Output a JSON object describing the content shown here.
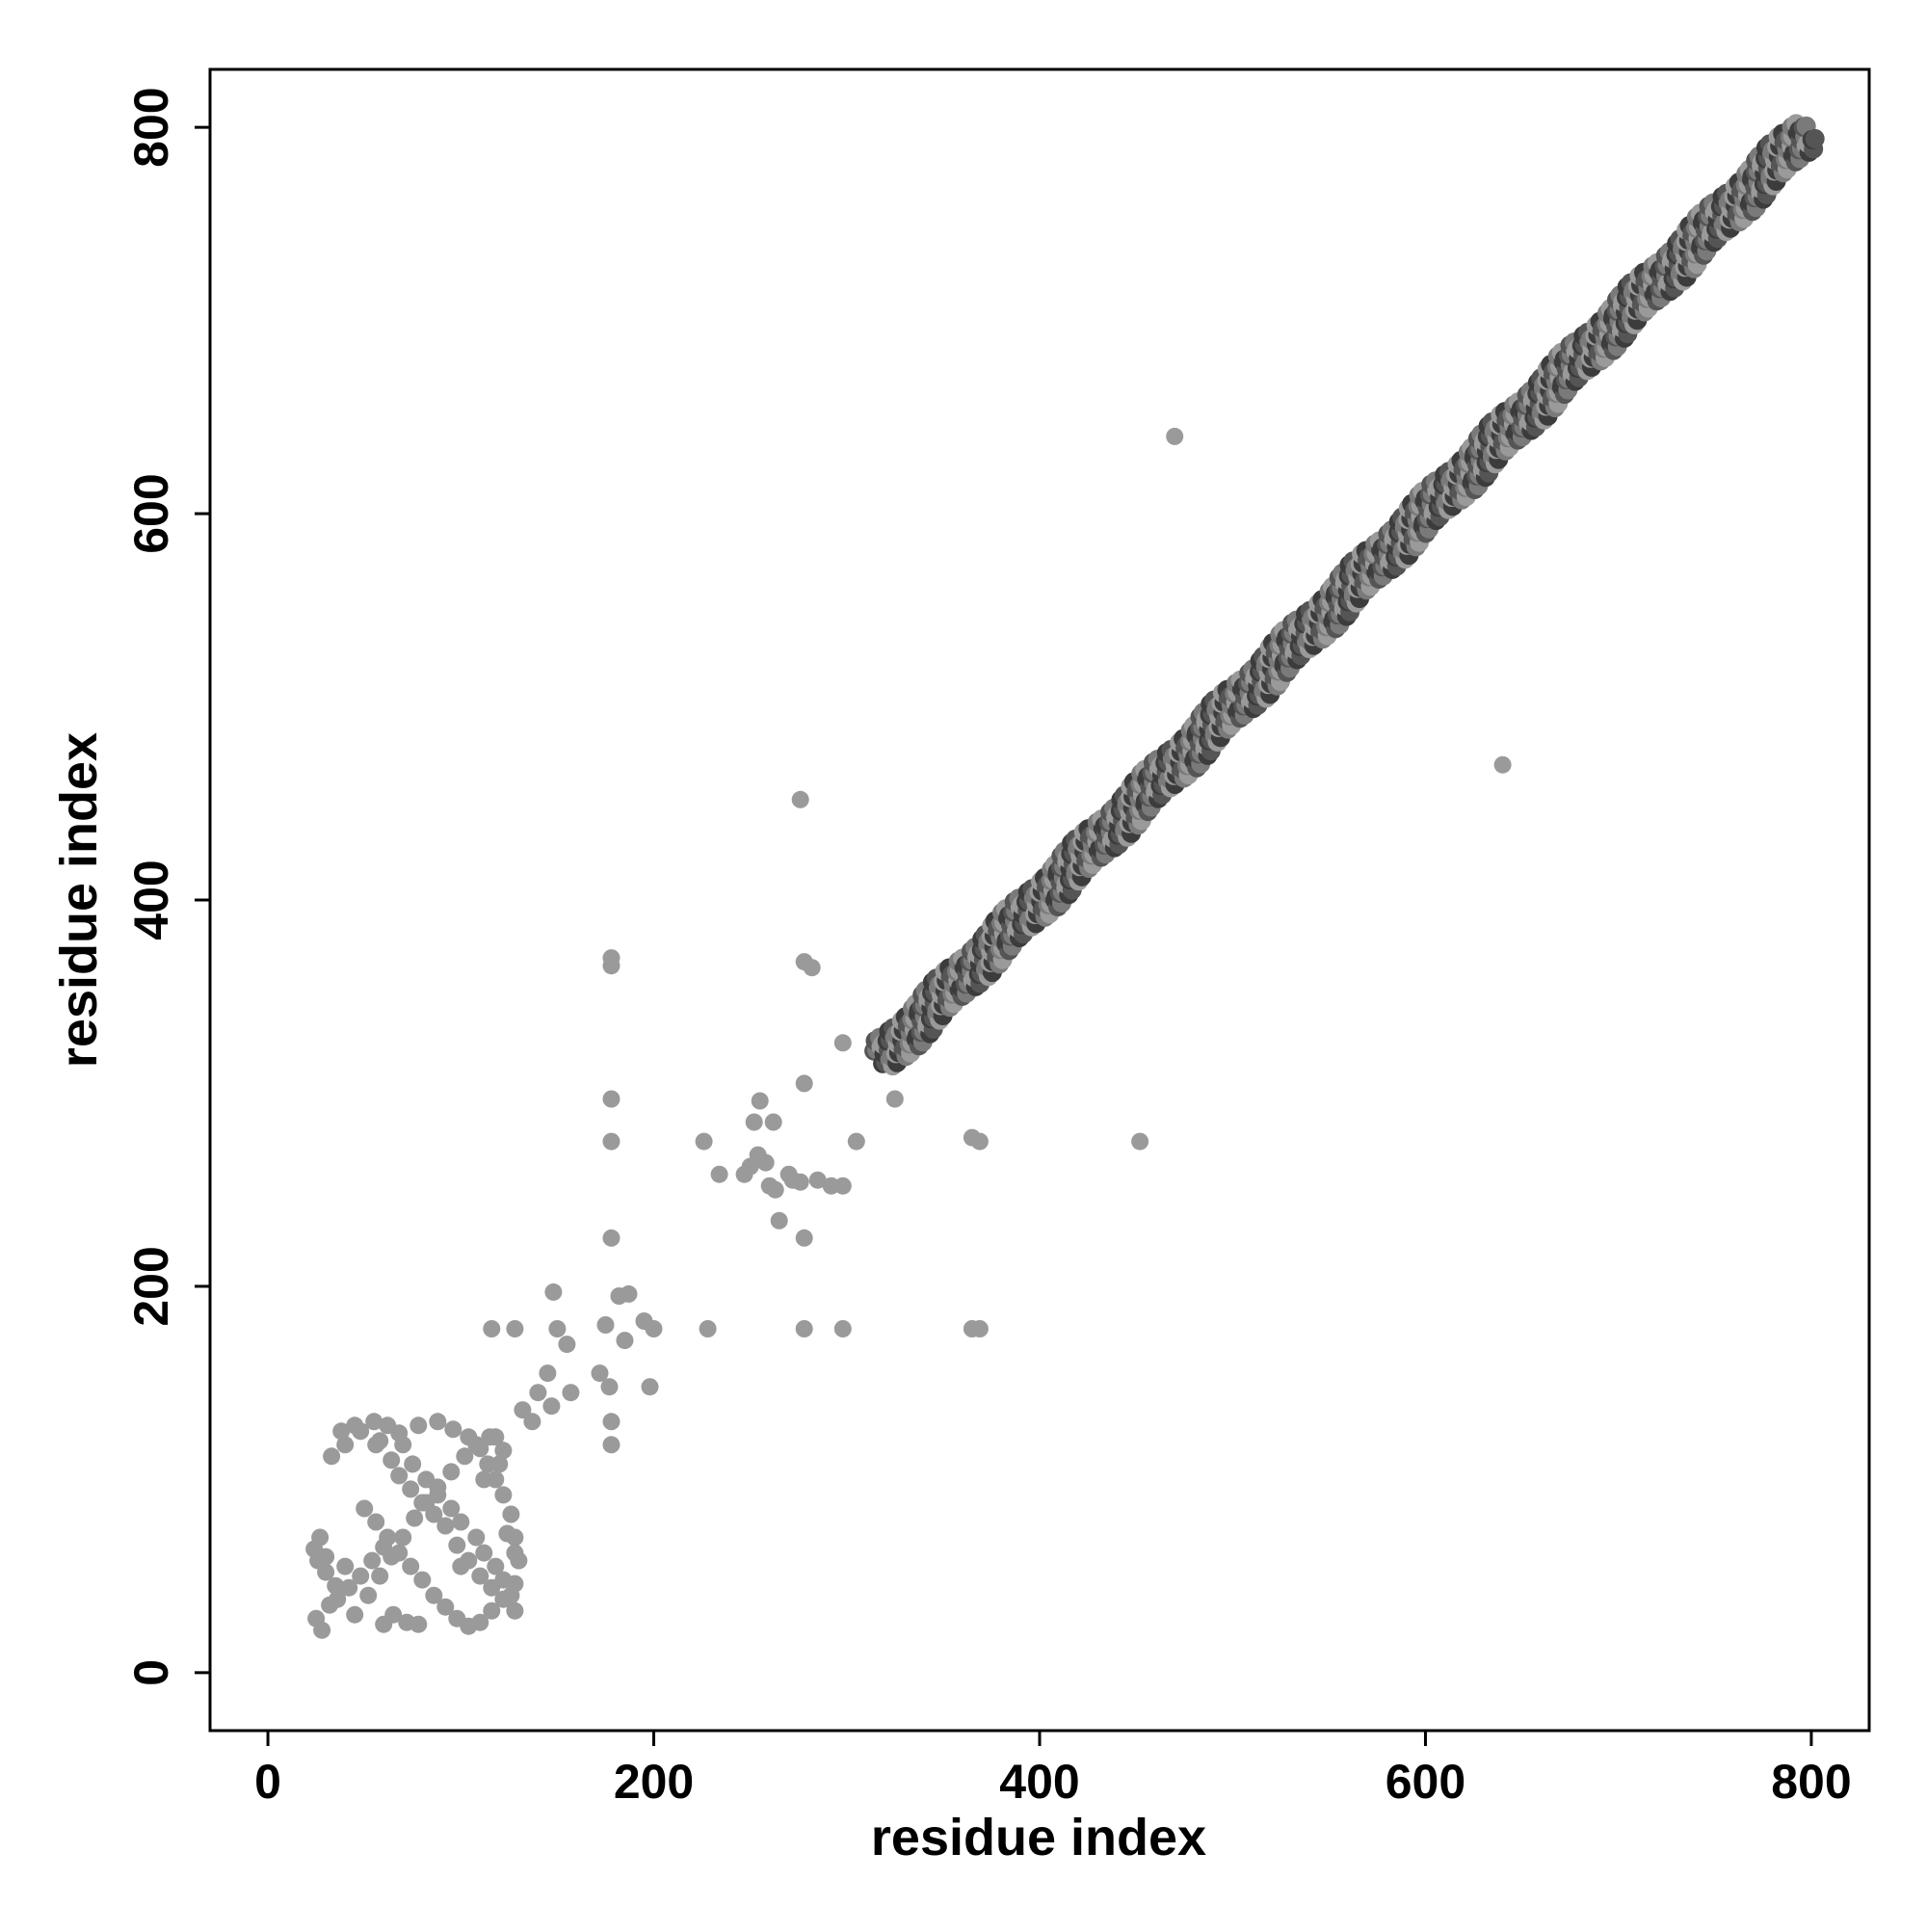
{
  "chart_data": {
    "type": "scatter",
    "title": "",
    "xlabel": "residue index",
    "ylabel": "residue index",
    "xlim": [
      -30,
      830
    ],
    "ylim": [
      -30,
      830
    ],
    "xticks": [
      0,
      200,
      400,
      600,
      800
    ],
    "yticks": [
      0,
      200,
      400,
      600,
      800
    ],
    "xtick_labels": [
      "0",
      "200",
      "400",
      "600",
      "800"
    ],
    "ytick_labels": [
      "0",
      "200",
      "400",
      "600",
      "800"
    ],
    "grid": false,
    "legend": "none",
    "colors": {
      "light": "#9a9a9a",
      "mid": "#7a7a7a",
      "dark": "#555555",
      "darkest": "#3c3c3c",
      "axis": "#000000"
    },
    "series": [
      {
        "color_group": "light",
        "points": [
          [
            25,
            28
          ],
          [
            28,
            22
          ],
          [
            32,
            35
          ],
          [
            35,
            45
          ],
          [
            40,
            55
          ],
          [
            30,
            60
          ],
          [
            27,
            70
          ],
          [
            33,
            112
          ],
          [
            40,
            118
          ],
          [
            48,
            125
          ],
          [
            55,
            130
          ],
          [
            62,
            128
          ],
          [
            70,
            118
          ],
          [
            75,
            108
          ],
          [
            82,
            100
          ],
          [
            88,
            92
          ],
          [
            95,
            85
          ],
          [
            100,
            78
          ],
          [
            108,
            70
          ],
          [
            112,
            62
          ],
          [
            118,
            55
          ],
          [
            122,
            48
          ],
          [
            126,
            40
          ],
          [
            128,
            32
          ],
          [
            45,
            30
          ],
          [
            52,
            40
          ],
          [
            58,
            50
          ],
          [
            64,
            60
          ],
          [
            70,
            70
          ],
          [
            76,
            80
          ],
          [
            82,
            88
          ],
          [
            88,
            96
          ],
          [
            95,
            104
          ],
          [
            102,
            112
          ],
          [
            108,
            118
          ],
          [
            115,
            122
          ],
          [
            50,
            85
          ],
          [
            56,
            78
          ],
          [
            62,
            70
          ],
          [
            68,
            62
          ],
          [
            74,
            55
          ],
          [
            80,
            48
          ],
          [
            86,
            40
          ],
          [
            92,
            34
          ],
          [
            98,
            28
          ],
          [
            104,
            24
          ],
          [
            110,
            26
          ],
          [
            116,
            32
          ],
          [
            60,
            25
          ],
          [
            65,
            30
          ],
          [
            72,
            26
          ],
          [
            78,
            25
          ],
          [
            38,
            125
          ],
          [
            45,
            128
          ],
          [
            56,
            118
          ],
          [
            64,
            110
          ],
          [
            68,
            102
          ],
          [
            74,
            95
          ],
          [
            80,
            88
          ],
          [
            86,
            82
          ],
          [
            92,
            76
          ],
          [
            98,
            66
          ],
          [
            104,
            58
          ],
          [
            110,
            50
          ],
          [
            116,
            44
          ],
          [
            122,
            38
          ],
          [
            128,
            46
          ],
          [
            130,
            58
          ],
          [
            128,
            70
          ],
          [
            126,
            82
          ],
          [
            122,
            92
          ],
          [
            118,
            100
          ],
          [
            114,
            108
          ],
          [
            110,
            116
          ],
          [
            104,
            122
          ],
          [
            96,
            126
          ],
          [
            88,
            130
          ],
          [
            78,
            128
          ],
          [
            68,
            124
          ],
          [
            58,
            120
          ],
          [
            100,
            55
          ],
          [
            124,
            72
          ],
          [
            128,
            62
          ],
          [
            118,
            122
          ],
          [
            122,
            115
          ],
          [
            112,
            100
          ],
          [
            120,
            108
          ],
          [
            60,
            65
          ],
          [
            54,
            58
          ],
          [
            48,
            50
          ],
          [
            42,
            44
          ],
          [
            36,
            38
          ],
          [
            30,
            52
          ],
          [
            24,
            64
          ],
          [
            26,
            58
          ],
          [
            116,
            178
          ],
          [
            128,
            178
          ],
          [
            132,
            136
          ],
          [
            137,
            130
          ],
          [
            140,
            145
          ],
          [
            145,
            155
          ],
          [
            147,
            138
          ],
          [
            148,
            197
          ],
          [
            150,
            178
          ],
          [
            155,
            170
          ],
          [
            157,
            145
          ],
          [
            172,
            155
          ],
          [
            175,
            180
          ],
          [
            177,
            148
          ],
          [
            178,
            130
          ],
          [
            178,
            118
          ],
          [
            178,
            225
          ],
          [
            178,
            275
          ],
          [
            178,
            297
          ],
          [
            178,
            366
          ],
          [
            178,
            370
          ],
          [
            182,
            195
          ],
          [
            185,
            172
          ],
          [
            187,
            196
          ],
          [
            195,
            182
          ],
          [
            198,
            148
          ],
          [
            200,
            178
          ],
          [
            226,
            275
          ],
          [
            228,
            178
          ],
          [
            234,
            258
          ],
          [
            247,
            258
          ],
          [
            250,
            262
          ],
          [
            252,
            285
          ],
          [
            254,
            268
          ],
          [
            255,
            296
          ],
          [
            258,
            264
          ],
          [
            260,
            252
          ],
          [
            262,
            285
          ],
          [
            263,
            250
          ],
          [
            265,
            234
          ],
          [
            270,
            258
          ],
          [
            272,
            255
          ],
          [
            276,
            254
          ],
          [
            278,
            225
          ],
          [
            278,
            178
          ],
          [
            278,
            305
          ],
          [
            278,
            368
          ],
          [
            282,
            365
          ],
          [
            285,
            255
          ],
          [
            292,
            252
          ],
          [
            298,
            326
          ],
          [
            298,
            252
          ],
          [
            298,
            178
          ],
          [
            305,
            275
          ],
          [
            325,
            297
          ],
          [
            365,
            277
          ],
          [
            365,
            178
          ],
          [
            369,
            275
          ],
          [
            369,
            178
          ],
          [
            276,
            452
          ],
          [
            452,
            275
          ],
          [
            470,
            640
          ],
          [
            640,
            470
          ]
        ]
      },
      {
        "color_group": "diagonal",
        "start": 318,
        "end": 798
      }
    ]
  }
}
